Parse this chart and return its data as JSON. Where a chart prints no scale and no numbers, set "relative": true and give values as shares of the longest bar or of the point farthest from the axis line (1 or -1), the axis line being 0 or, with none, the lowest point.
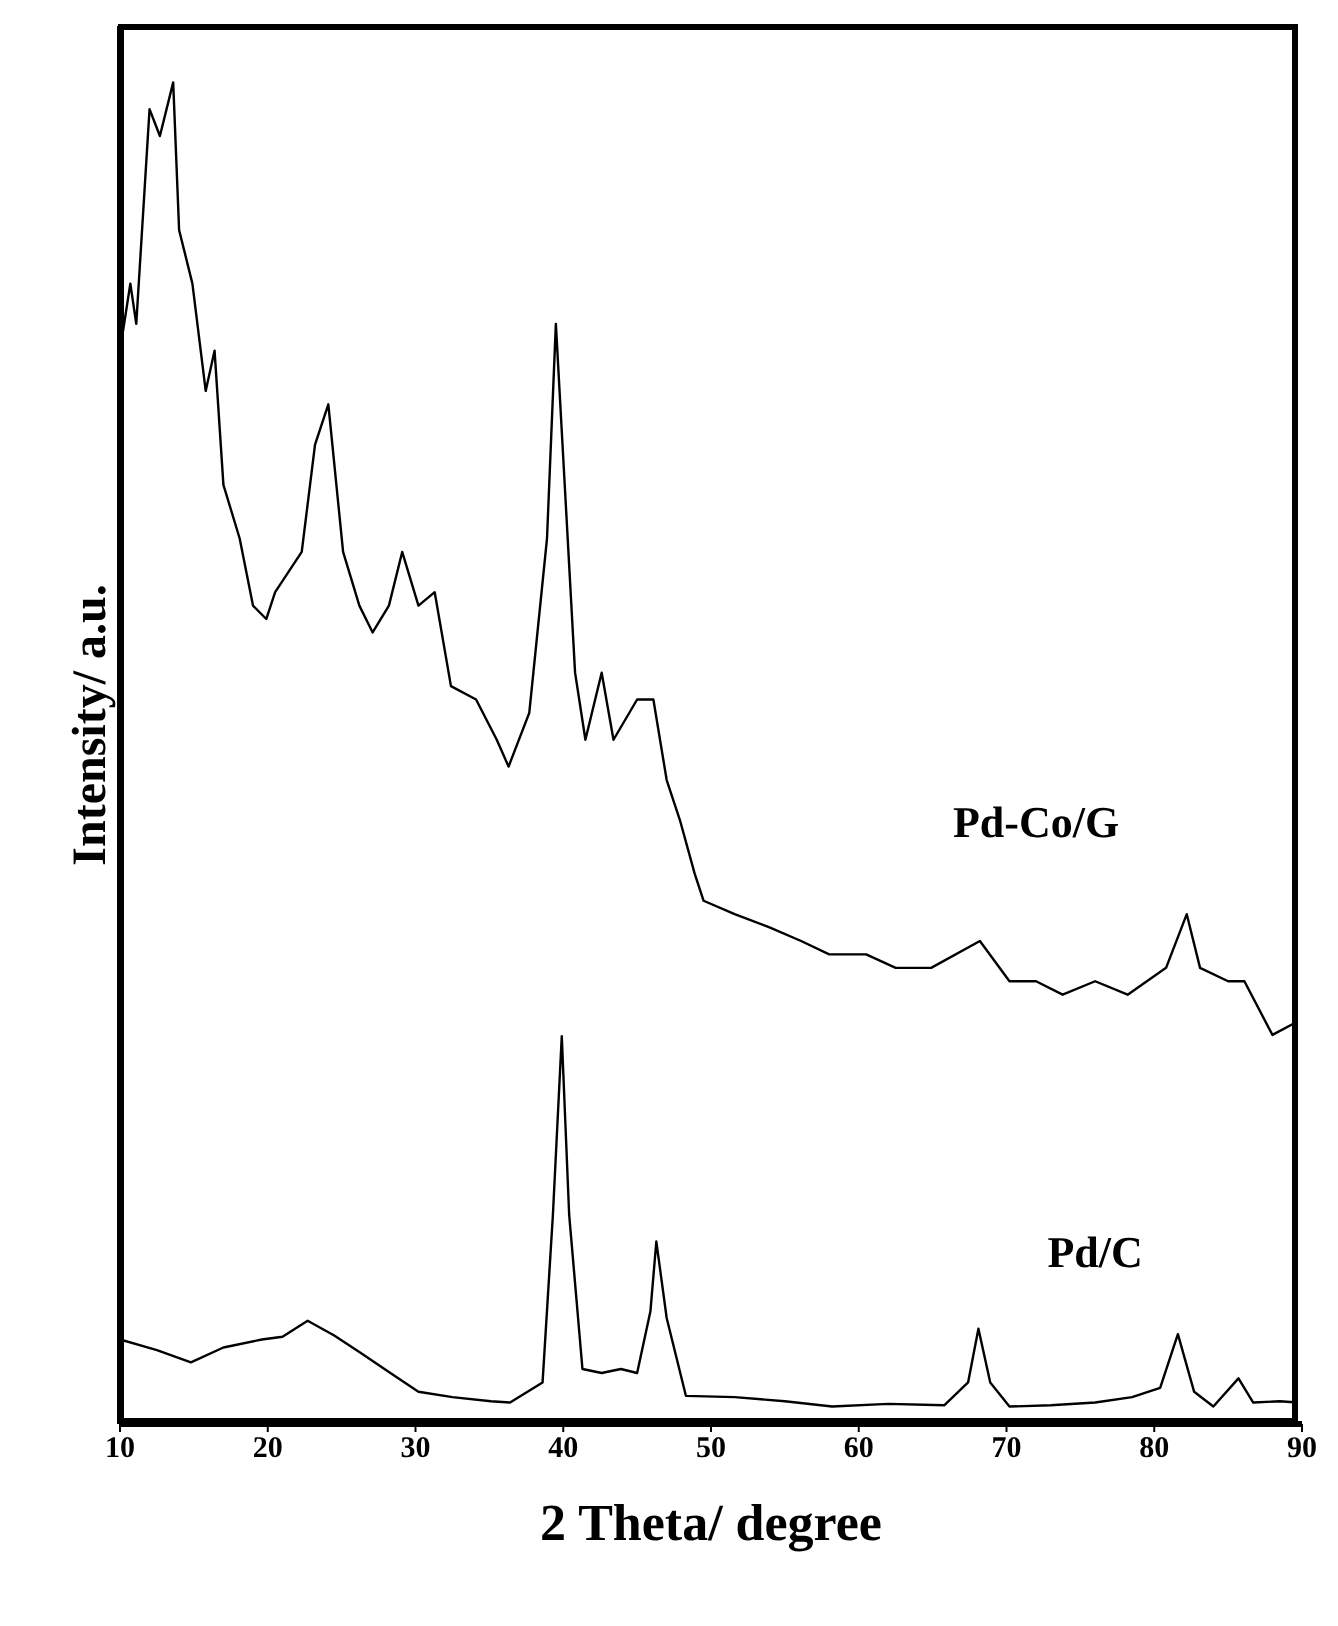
{
  "chart_data": {
    "type": "line",
    "xlabel": "2 Theta/ degree",
    "ylabel": "Intensity/ a.u.",
    "relative": true,
    "xlim": [
      10,
      90
    ],
    "xticks": [
      10,
      20,
      30,
      40,
      50,
      60,
      70,
      80,
      90
    ],
    "tick_labels": "x",
    "marker": "none",
    "line_style": "solid",
    "series": [
      {
        "name": "Pd-Co/G",
        "color": "#000000",
        "x": [
          10,
          10.7,
          11.1,
          12.0,
          12.7,
          13.6,
          14.0,
          14.9,
          15.8,
          16.4,
          17.0,
          18.1,
          19.0,
          19.9,
          20.5,
          22.3,
          23.2,
          24.1,
          25.1,
          26.2,
          27.1,
          28.2,
          29.1,
          30.2,
          31.3,
          32.4,
          34.1,
          35.5,
          36.3,
          37.7,
          38.9,
          39.5,
          40.2,
          40.8,
          41.5,
          42.6,
          43.4,
          45.0,
          46.1,
          47.0,
          47.9,
          48.9,
          49.5,
          51.6,
          54.0,
          56.1,
          58.0,
          60.5,
          62.5,
          64.9,
          68.2,
          70.2,
          72.0,
          73.8,
          76.0,
          78.2,
          80.8,
          82.2,
          83.1,
          85.0,
          86.1,
          88.0,
          89.7
        ],
        "values": [
          0.8,
          0.85,
          0.82,
          0.98,
          0.96,
          1.0,
          0.89,
          0.85,
          0.77,
          0.8,
          0.7,
          0.66,
          0.61,
          0.6,
          0.62,
          0.65,
          0.73,
          0.76,
          0.65,
          0.61,
          0.59,
          0.61,
          0.65,
          0.61,
          0.62,
          0.55,
          0.54,
          0.51,
          0.49,
          0.53,
          0.66,
          0.82,
          0.68,
          0.56,
          0.51,
          0.56,
          0.51,
          0.54,
          0.54,
          0.48,
          0.45,
          0.41,
          0.39,
          0.38,
          0.37,
          0.36,
          0.35,
          0.35,
          0.34,
          0.34,
          0.36,
          0.33,
          0.33,
          0.32,
          0.33,
          0.32,
          0.34,
          0.38,
          0.34,
          0.33,
          0.33,
          0.29,
          0.3
        ]
      },
      {
        "name": "Pd/C",
        "color": "#000000",
        "x": [
          10,
          12.5,
          14.8,
          17.0,
          19.6,
          21.0,
          22.7,
          24.5,
          26.3,
          28.3,
          30.2,
          32.5,
          35.1,
          36.4,
          38.6,
          39.3,
          39.9,
          40.4,
          41.3,
          42.6,
          43.9,
          45.0,
          45.9,
          46.3,
          47.0,
          48.3,
          51.6,
          55.0,
          58.2,
          62.0,
          65.8,
          67.4,
          68.1,
          68.9,
          70.2,
          73.0,
          76.0,
          78.5,
          80.4,
          81.6,
          82.7,
          84.0,
          85.7,
          86.7,
          88.5,
          89.7
        ],
        "values": [
          0.063,
          0.055,
          0.046,
          0.057,
          0.063,
          0.065,
          0.077,
          0.066,
          0.053,
          0.038,
          0.024,
          0.02,
          0.017,
          0.016,
          0.031,
          0.156,
          0.289,
          0.156,
          0.041,
          0.038,
          0.041,
          0.038,
          0.084,
          0.136,
          0.079,
          0.021,
          0.02,
          0.017,
          0.013,
          0.015,
          0.014,
          0.031,
          0.071,
          0.031,
          0.013,
          0.014,
          0.016,
          0.02,
          0.027,
          0.067,
          0.024,
          0.013,
          0.034,
          0.016,
          0.017,
          0.016
        ]
      }
    ]
  }
}
